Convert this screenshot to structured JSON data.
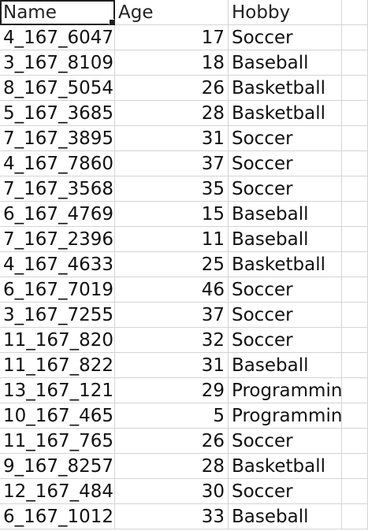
{
  "headers": {
    "name": "Name",
    "age": "Age",
    "hobby": "Hobby"
  },
  "rows": [
    {
      "name": "4_167_6047",
      "age": "17",
      "hobby": "Soccer"
    },
    {
      "name": "3_167_8109",
      "age": "18",
      "hobby": "Baseball"
    },
    {
      "name": "8_167_5054",
      "age": "26",
      "hobby": "Basketball"
    },
    {
      "name": "5_167_3685",
      "age": "28",
      "hobby": "Basketball"
    },
    {
      "name": "7_167_3895",
      "age": "31",
      "hobby": "Soccer"
    },
    {
      "name": "4_167_7860",
      "age": "37",
      "hobby": "Soccer"
    },
    {
      "name": "7_167_3568",
      "age": "35",
      "hobby": "Soccer"
    },
    {
      "name": "6_167_4769",
      "age": "15",
      "hobby": "Baseball"
    },
    {
      "name": "7_167_2396",
      "age": "11",
      "hobby": "Baseball"
    },
    {
      "name": "4_167_4633",
      "age": "25",
      "hobby": "Basketball"
    },
    {
      "name": "6_167_7019",
      "age": "46",
      "hobby": "Soccer"
    },
    {
      "name": "3_167_7255",
      "age": "37",
      "hobby": "Soccer"
    },
    {
      "name": "11_167_820",
      "age": "32",
      "hobby": "Soccer"
    },
    {
      "name": "11_167_822",
      "age": "31",
      "hobby": "Baseball"
    },
    {
      "name": "13_167_121",
      "age": "29",
      "hobby": "Programming"
    },
    {
      "name": "10_167_465",
      "age": "5",
      "hobby": "Programming"
    },
    {
      "name": "11_167_765",
      "age": "26",
      "hobby": "Soccer"
    },
    {
      "name": "9_167_8257",
      "age": "28",
      "hobby": "Basketball"
    },
    {
      "name": "12_167_484",
      "age": "30",
      "hobby": "Soccer"
    },
    {
      "name": "6_167_1012",
      "age": "33",
      "hobby": "Baseball"
    }
  ]
}
